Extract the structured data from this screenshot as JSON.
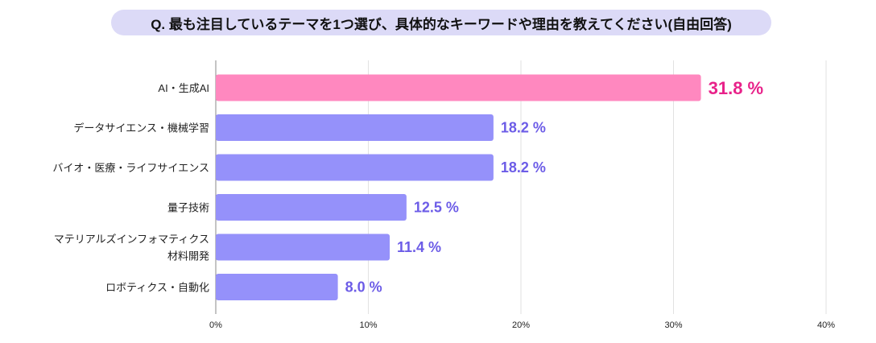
{
  "chart_data": {
    "type": "bar",
    "orientation": "horizontal",
    "title": "Q. 最も注目しているテーマを1つ選び、具体的なキーワードや理由を教えてください(自由回答)",
    "categories": [
      [
        "AI・生成AI"
      ],
      [
        "データサイエンス・機械学習"
      ],
      [
        "バイオ・医療・ライフサイエンス"
      ],
      [
        "量子技術"
      ],
      [
        "マテリアルズインフォマティクス",
        "材料開発"
      ],
      [
        "ロボティクス・自動化"
      ]
    ],
    "values": [
      31.8,
      18.2,
      18.2,
      12.5,
      11.4,
      8.0
    ],
    "value_labels": [
      "31.8 %",
      "18.2 %",
      "18.2 %",
      "12.5 %",
      "11.4 %",
      "8.0 %"
    ],
    "xlim": [
      0,
      40
    ],
    "xticks": [
      0,
      10,
      20,
      30,
      40
    ],
    "xtick_labels": [
      "0%",
      "10%",
      "20%",
      "30%",
      "40%"
    ],
    "grid": true,
    "highlight_index": 0,
    "colors": {
      "highlight_bar": "#ff88bf",
      "bar": "#9591fa",
      "highlight_label": "#e8228a",
      "label": "#6c5ce7",
      "title_bg": "#dcdaf7",
      "grid": "#e2e2e2"
    }
  }
}
